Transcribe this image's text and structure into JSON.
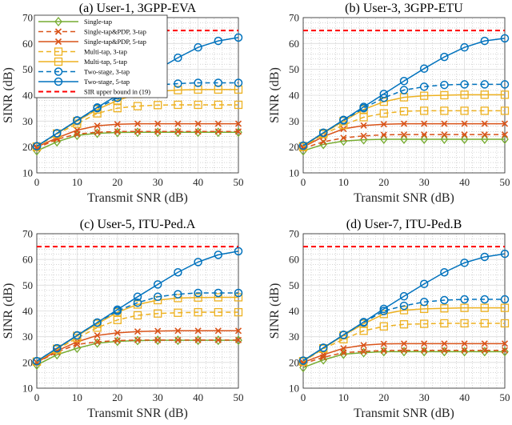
{
  "legend": {
    "placement": "top-left of panel (a)",
    "entries": [
      "Single-tap",
      "Single-tap&PDP, 3-tap",
      "Single-tap&PDP, 5-tap",
      "Multi-tap, 3-tap",
      "Multi-tap, 5-tap",
      "Two-stage, 3-tap",
      "Two-stage, 5-tap",
      "SIR upper bound in (19)"
    ]
  },
  "series_style": [
    {
      "color": "#77AC30",
      "dash": false,
      "marker": "diamond"
    },
    {
      "color": "#D95319",
      "dash": true,
      "marker": "x"
    },
    {
      "color": "#D95319",
      "dash": false,
      "marker": "x"
    },
    {
      "color": "#EDB120",
      "dash": true,
      "marker": "square"
    },
    {
      "color": "#EDB120",
      "dash": false,
      "marker": "square"
    },
    {
      "color": "#0072BD",
      "dash": true,
      "marker": "circle"
    },
    {
      "color": "#0072BD",
      "dash": false,
      "marker": "circle"
    },
    {
      "color": "#FF0000",
      "dash": true,
      "marker": "none"
    }
  ],
  "chart_data": [
    {
      "type": "line",
      "title": "(a) User-1, 3GPP-EVA",
      "xlabel": "Transmit SNR (dB)",
      "ylabel": "SINR (dB)",
      "xlim": [
        0,
        50
      ],
      "ylim": [
        10,
        70
      ],
      "xticks": [
        0,
        10,
        20,
        30,
        40,
        50
      ],
      "yticks": [
        10,
        20,
        30,
        40,
        50,
        60,
        70
      ],
      "grid": "major+minor",
      "x": [
        0,
        5,
        10,
        15,
        20,
        25,
        30,
        35,
        40,
        45,
        50
      ],
      "series": [
        {
          "name": "Single-tap",
          "values": [
            18.5,
            22,
            24.5,
            25.3,
            25.6,
            25.7,
            25.7,
            25.7,
            25.7,
            25.7,
            25.7
          ]
        },
        {
          "name": "Single-tap&PDP, 3-tap",
          "values": [
            19.5,
            23,
            25,
            25.7,
            26,
            26,
            26,
            26,
            26,
            26,
            26
          ]
        },
        {
          "name": "Single-tap&PDP, 5-tap",
          "values": [
            20,
            23.5,
            26.5,
            28.2,
            28.8,
            29,
            29,
            29,
            29,
            29,
            29
          ]
        },
        {
          "name": "Multi-tap, 3-tap",
          "values": [
            20,
            25,
            29,
            33,
            35,
            35.8,
            36.2,
            36.3,
            36.3,
            36.3,
            36.3
          ]
        },
        {
          "name": "Multi-tap, 5-tap",
          "values": [
            20.2,
            25.2,
            30,
            34.5,
            38,
            40.5,
            41.5,
            42,
            42.2,
            42.2,
            42.2
          ]
        },
        {
          "name": "Two-stage, 3-tap",
          "values": [
            20.3,
            25.3,
            30.2,
            35,
            39,
            42,
            44,
            44.5,
            44.8,
            44.8,
            44.8
          ]
        },
        {
          "name": "Two-stage, 5-tap",
          "values": [
            20.3,
            25.3,
            30.3,
            35.3,
            40,
            45,
            50,
            54.5,
            58.5,
            61,
            62.3
          ]
        },
        {
          "name": "SIR upper bound in (19)",
          "values": [
            65,
            65,
            65,
            65,
            65,
            65,
            65,
            65,
            65,
            65,
            65
          ]
        }
      ]
    },
    {
      "type": "line",
      "title": "(b) User-3, 3GPP-ETU",
      "xlabel": "Transmit SNR (dB)",
      "ylabel": "SINR (dB)",
      "xlim": [
        0,
        50
      ],
      "ylim": [
        10,
        70
      ],
      "xticks": [
        0,
        10,
        20,
        30,
        40,
        50
      ],
      "yticks": [
        10,
        20,
        30,
        40,
        50,
        60,
        70
      ],
      "grid": "major+minor",
      "x": [
        0,
        5,
        10,
        15,
        20,
        25,
        30,
        35,
        40,
        45,
        50
      ],
      "series": [
        {
          "name": "Single-tap",
          "values": [
            18.5,
            21,
            22.3,
            22.8,
            23,
            23,
            23,
            23,
            23,
            23,
            23
          ]
        },
        {
          "name": "Single-tap&PDP, 3-tap",
          "values": [
            19.5,
            22,
            23.5,
            24.3,
            24.7,
            24.8,
            24.8,
            24.8,
            24.8,
            24.8,
            24.8
          ]
        },
        {
          "name": "Single-tap&PDP, 5-tap",
          "values": [
            20,
            24,
            27,
            28.3,
            28.8,
            29,
            29,
            29,
            29,
            29,
            29
          ]
        },
        {
          "name": "Multi-tap, 3-tap",
          "values": [
            20,
            25,
            28.5,
            31.5,
            33,
            33.8,
            34,
            34,
            34,
            34,
            34
          ]
        },
        {
          "name": "Multi-tap, 5-tap",
          "values": [
            20.3,
            25.3,
            30,
            34.5,
            37.5,
            39.2,
            39.8,
            40,
            40.2,
            40.2,
            40.2
          ]
        },
        {
          "name": "Two-stage, 3-tap",
          "values": [
            20.5,
            25.5,
            30.3,
            35,
            39,
            42,
            43.3,
            44,
            44.2,
            44.2,
            44.2
          ]
        },
        {
          "name": "Two-stage, 5-tap",
          "values": [
            20.5,
            25.5,
            30.5,
            35.5,
            40.5,
            45.5,
            50.3,
            54.8,
            58.5,
            61,
            62
          ]
        },
        {
          "name": "SIR upper bound in (19)",
          "values": [
            65,
            65,
            65,
            65,
            65,
            65,
            65,
            65,
            65,
            65,
            65
          ]
        }
      ]
    },
    {
      "type": "line",
      "title": "(c) User-5, ITU-Ped.A",
      "xlabel": "Transmit SNR (dB)",
      "ylabel": "SINR (dB)",
      "xlim": [
        0,
        50
      ],
      "ylim": [
        10,
        70
      ],
      "xticks": [
        0,
        10,
        20,
        30,
        40,
        50
      ],
      "yticks": [
        10,
        20,
        30,
        40,
        50,
        60,
        70
      ],
      "grid": "major+minor",
      "x": [
        0,
        5,
        10,
        15,
        20,
        25,
        30,
        35,
        40,
        45,
        50
      ],
      "series": [
        {
          "name": "Single-tap",
          "values": [
            19,
            23,
            25.5,
            27.5,
            28.2,
            28.5,
            28.6,
            28.6,
            28.6,
            28.6,
            28.6
          ]
        },
        {
          "name": "Single-tap&PDP, 3-tap",
          "values": [
            20,
            24,
            27,
            28,
            28.5,
            28.7,
            28.7,
            28.7,
            28.7,
            28.7,
            28.7
          ]
        },
        {
          "name": "Single-tap&PDP, 5-tap",
          "values": [
            20,
            24.5,
            28,
            30.5,
            31.5,
            32,
            32.2,
            32.3,
            32.3,
            32.3,
            32.3
          ]
        },
        {
          "name": "Multi-tap, 3-tap",
          "values": [
            20.3,
            25,
            29.5,
            33.5,
            36.5,
            38.3,
            39,
            39.3,
            39.5,
            39.5,
            39.5
          ]
        },
        {
          "name": "Multi-tap, 5-tap",
          "values": [
            20.3,
            25.3,
            30.3,
            35,
            39.5,
            42.5,
            44.2,
            45,
            45.2,
            45.3,
            45.3
          ]
        },
        {
          "name": "Two-stage, 3-tap",
          "values": [
            20.5,
            25.5,
            30.5,
            35.5,
            40,
            43.2,
            45.5,
            46.5,
            47,
            47,
            47
          ]
        },
        {
          "name": "Two-stage, 5-tap",
          "values": [
            20.5,
            25.5,
            30.5,
            35.5,
            40.5,
            45.5,
            50.3,
            55,
            59,
            61.8,
            63.2
          ]
        },
        {
          "name": "SIR upper bound in (19)",
          "values": [
            65,
            65,
            65,
            65,
            65,
            65,
            65,
            65,
            65,
            65,
            65
          ]
        }
      ]
    },
    {
      "type": "line",
      "title": "(d) User-7, ITU-Ped.B",
      "xlabel": "Transmit SNR (dB)",
      "ylabel": "SINR (dB)",
      "xlim": [
        0,
        50
      ],
      "ylim": [
        10,
        70
      ],
      "xticks": [
        0,
        10,
        20,
        30,
        40,
        50
      ],
      "yticks": [
        10,
        20,
        30,
        40,
        50,
        60,
        70
      ],
      "grid": "major+minor",
      "x": [
        0,
        5,
        10,
        15,
        20,
        25,
        30,
        35,
        40,
        45,
        50
      ],
      "series": [
        {
          "name": "Single-tap",
          "values": [
            18,
            21,
            23.2,
            23.8,
            24.2,
            24.2,
            24.2,
            24.2,
            24.2,
            24.2,
            24.2
          ]
        },
        {
          "name": "Single-tap&PDP, 3-tap",
          "values": [
            19.5,
            22,
            23.8,
            24.3,
            24.6,
            24.7,
            24.7,
            24.7,
            24.7,
            24.7,
            24.7
          ]
        },
        {
          "name": "Single-tap&PDP, 5-tap",
          "values": [
            20,
            23,
            25.5,
            26.7,
            27.2,
            27.3,
            27.3,
            27.3,
            27.3,
            27.3,
            27.3
          ]
        },
        {
          "name": "Multi-tap, 3-tap",
          "values": [
            20.3,
            25.3,
            29,
            32.3,
            34,
            34.8,
            35,
            35.2,
            35.2,
            35.2,
            35.2
          ]
        },
        {
          "name": "Multi-tap, 5-tap",
          "values": [
            20.5,
            25.5,
            30.5,
            35,
            38.8,
            40.3,
            40.8,
            41,
            41.2,
            41.2,
            41.2
          ]
        },
        {
          "name": "Two-stage, 3-tap",
          "values": [
            20.7,
            25.7,
            30.7,
            35.5,
            40,
            42,
            43.5,
            44.2,
            44.5,
            44.5,
            44.5
          ]
        },
        {
          "name": "Two-stage, 5-tap",
          "values": [
            20.7,
            25.7,
            30.7,
            35.7,
            40.8,
            45.7,
            50.5,
            55,
            58.7,
            61,
            62.2
          ]
        },
        {
          "name": "SIR upper bound in (19)",
          "values": [
            65,
            65,
            65,
            65,
            65,
            65,
            65,
            65,
            65,
            65,
            65
          ]
        }
      ]
    }
  ]
}
